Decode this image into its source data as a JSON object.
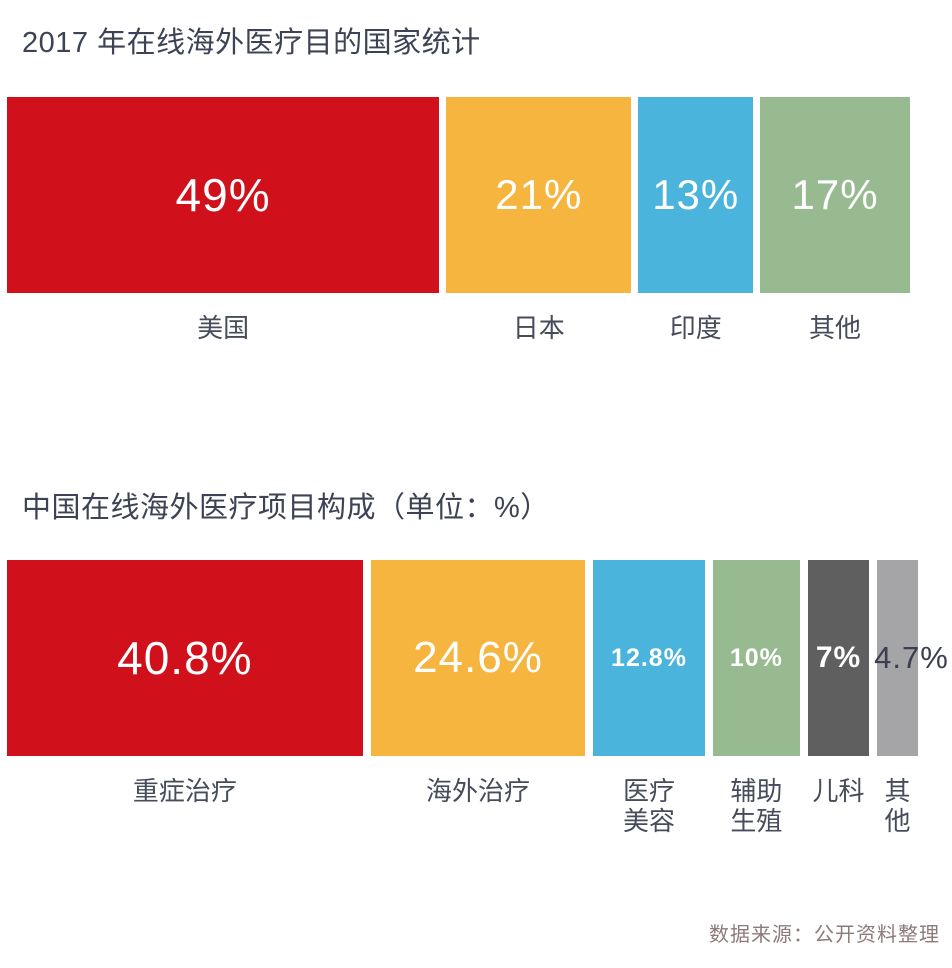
{
  "source_note": "数据来源：公开资料整理",
  "text_colors": {
    "title": "#3d4254",
    "category_label": "#474c5a",
    "source_note": "#8d7b7b"
  },
  "chart_data": [
    {
      "type": "bar",
      "layout": "proportional-width-blocks",
      "title": "2017 年在线海外医疗目的国家统计",
      "unit": "%",
      "categories": [
        "美国",
        "日本",
        "印度",
        "其他"
      ],
      "values": [
        49,
        21,
        13,
        17
      ],
      "value_labels": [
        "49%",
        "21%",
        "13%",
        "17%"
      ],
      "colors": [
        "#d0111b",
        "#f5b53f",
        "#4bb4dc",
        "#97ba90"
      ],
      "value_colors": [
        "#ffffff",
        "#ffffff",
        "#ffffff",
        "#ffffff"
      ],
      "label_lines": [
        [
          "美国"
        ],
        [
          "日本"
        ],
        [
          "印度"
        ],
        [
          "其他"
        ]
      ],
      "legend": "none",
      "grid": false
    },
    {
      "type": "bar",
      "layout": "proportional-width-blocks",
      "title": "中国在线海外医疗项目构成（单位：%）",
      "unit": "%",
      "categories": [
        "重症治疗",
        "海外治疗",
        "医疗美容",
        "辅助生殖",
        "儿科",
        "其他"
      ],
      "values": [
        40.8,
        24.6,
        12.8,
        10,
        7,
        4.7
      ],
      "value_labels": [
        "40.8%",
        "24.6%",
        "12.8%",
        "10%",
        "7%",
        "4.7%"
      ],
      "colors": [
        "#d0111b",
        "#f5b53f",
        "#4bb4dc",
        "#97ba90",
        "#5f5f5f",
        "#a5a5a7"
      ],
      "value_colors": [
        "#ffffff",
        "#ffffff",
        "#ffffff",
        "#ffffff",
        "#ffffff",
        "#3a3e4e"
      ],
      "label_lines": [
        [
          "重症治疗"
        ],
        [
          "海外治疗"
        ],
        [
          "医疗",
          "美容"
        ],
        [
          "辅助",
          "生殖"
        ],
        [
          "儿科"
        ],
        [
          "其他"
        ]
      ],
      "legend": "none",
      "grid": false
    }
  ]
}
